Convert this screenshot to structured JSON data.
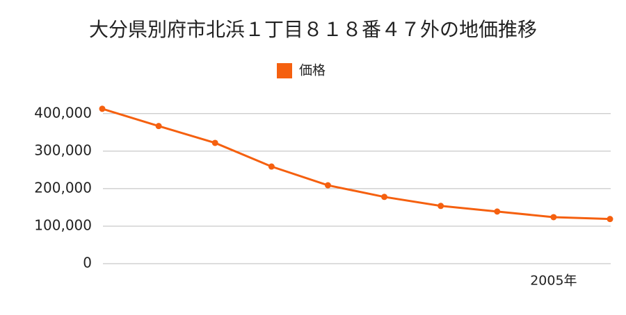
{
  "chart_data": {
    "type": "line",
    "title": "大分県別府市北浜１丁目８１８番４７外の地価推移",
    "categories": [
      null,
      null,
      null,
      null,
      null,
      null,
      null,
      null,
      "2005年",
      null
    ],
    "series": [
      {
        "name": "価格",
        "color": "#f5600f",
        "values": [
          413000,
          367000,
          322000,
          259000,
          209000,
          178000,
          154000,
          139000,
          124000,
          119000
        ]
      }
    ],
    "ylim": [
      0,
      420000
    ],
    "yticks": [
      0,
      {
        "value": 100000,
        "label": "100,000"
      },
      {
        "value": 200000,
        "label": "200,000"
      },
      {
        "value": 300000,
        "label": "300,000"
      },
      {
        "value": 400000,
        "label": "400,000"
      }
    ],
    "grid": true,
    "legend": "top"
  }
}
